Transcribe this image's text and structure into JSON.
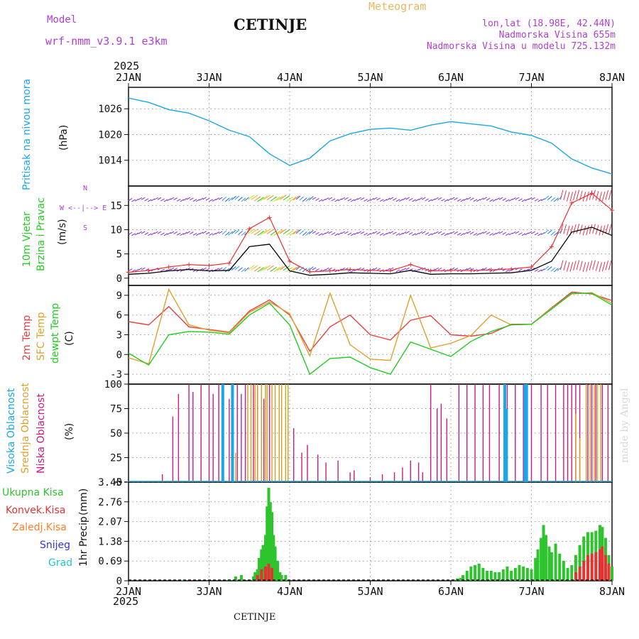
{
  "header": {
    "model_label": "Model",
    "model_name": "wrf-nmm_v3.9.1 e3km",
    "station": "CETINJE",
    "meteogram": "Meteogram",
    "lonlat": "lon,lat (18.98E, 42.44N)",
    "elevation": "Nadmorska Visina 655m",
    "model_elevation": "Nadmorska Visina u modelu 725.132m",
    "year": "2025",
    "watermark": "made by Angel",
    "footer_station": "CETINJE"
  },
  "colors": {
    "pressure": "#1aa7e6",
    "wind_black": "#000000",
    "wind_red": "#e63232",
    "temp2m": "#e84040",
    "sfc": "#e0a030",
    "dew": "#22cc22",
    "high_cloud": "#1aa7e6",
    "mid_cloud": "#d4a020",
    "low_cloud": "#cc1a80",
    "precip_total": "#2ec42e",
    "precip_conv": "#e63232",
    "precip_frz": "#ff7f2a",
    "precip_snow": "#3333dd",
    "precip_hail": "#22c7c7"
  },
  "chart_data": [
    {
      "id": "pressure",
      "type": "line",
      "ylabel": "Pritisak na nivou mora",
      "unit": "(hPa)",
      "ylim": [
        1008,
        1031
      ],
      "yticks": [
        1014,
        1020,
        1026
      ],
      "x": [
        0,
        0.25,
        0.5,
        0.75,
        1,
        1.25,
        1.5,
        1.75,
        2,
        2.25,
        2.5,
        2.75,
        3,
        3.25,
        3.5,
        3.75,
        4,
        4.25,
        4.5,
        4.75,
        5,
        5.25,
        5.5,
        5.75,
        6
      ],
      "values": [
        1028.5,
        1027.5,
        1025.8,
        1025,
        1023.2,
        1021,
        1019.5,
        1015.5,
        1012.8,
        1014.5,
        1018.5,
        1020.2,
        1021.2,
        1021.5,
        1021,
        1022.2,
        1023,
        1022.5,
        1022,
        1020.6,
        1019.8,
        1018,
        1014.3,
        1012.2,
        1010.8
      ],
      "grid": true
    },
    {
      "id": "wind",
      "type": "line",
      "ylabel": "10m Vjetar Brzina i Pravac",
      "unit": "(m/s)",
      "ylim": [
        -1.5,
        19
      ],
      "yticks": [
        0,
        5,
        10,
        15
      ],
      "x": [
        0,
        0.25,
        0.5,
        0.75,
        1,
        1.25,
        1.5,
        1.75,
        2,
        2.25,
        2.5,
        2.75,
        3,
        3.25,
        3.5,
        3.75,
        4,
        4.25,
        4.5,
        4.75,
        5,
        5.25,
        5.5,
        5.75,
        6
      ],
      "series": [
        {
          "name": "mean",
          "color": "#000000",
          "values": [
            0.8,
            1,
            1.5,
            1.8,
            1.5,
            1.6,
            6.5,
            7,
            1.5,
            0.6,
            0.8,
            1.1,
            1,
            0.9,
            1.6,
            0.8,
            0.9,
            0.9,
            1,
            1.1,
            1.6,
            3.5,
            9.5,
            10.5,
            8.8
          ]
        },
        {
          "name": "gust",
          "color": "#e63232",
          "values": [
            1.2,
            1.6,
            2.3,
            2.8,
            2.6,
            3.1,
            10.2,
            12.5,
            3.5,
            1.3,
            1.5,
            1.8,
            1.6,
            1.5,
            2.8,
            1.5,
            1.6,
            1.6,
            1.7,
            1.9,
            2.3,
            6.5,
            15.5,
            17.5,
            14
          ]
        }
      ],
      "barb_rows_ms": [
        1.5,
        9,
        16
      ],
      "direction_key": [
        "N",
        "E",
        "S",
        "W"
      ],
      "grid": true
    },
    {
      "id": "temperature",
      "type": "line",
      "ylabel": "2m Temp / SFC Temp / dewpt Temp",
      "unit": "(C)",
      "ylim": [
        -4.5,
        10.5
      ],
      "yticks": [
        -3,
        0,
        3,
        6,
        9
      ],
      "x": [
        0,
        0.25,
        0.5,
        0.75,
        1,
        1.25,
        1.5,
        1.75,
        2,
        2.25,
        2.5,
        2.75,
        3,
        3.25,
        3.5,
        3.75,
        4,
        4.25,
        4.5,
        4.75,
        5,
        5.25,
        5.5,
        5.75,
        6
      ],
      "series": [
        {
          "name": "2m Temp",
          "color": "#e84040",
          "values": [
            5,
            4.5,
            7.3,
            4.2,
            3.8,
            3.4,
            6.6,
            8.3,
            6,
            0.5,
            4.2,
            6,
            3,
            2.2,
            5.2,
            5.9,
            3,
            2.8,
            3.2,
            4.6,
            4.6,
            7.1,
            9.5,
            9.2,
            8.2
          ]
        },
        {
          "name": "SFC Temp",
          "color": "#e0a030",
          "values": [
            -0.5,
            -1.4,
            9.9,
            4.5,
            3.7,
            3.3,
            6.4,
            8,
            6.2,
            -0.2,
            9.3,
            1.5,
            -0.7,
            -0.9,
            9,
            1,
            1.7,
            2.9,
            6,
            4.5,
            4.6,
            7,
            9.2,
            9.4,
            7.8
          ]
        },
        {
          "name": "dewpt Temp",
          "color": "#22cc22",
          "values": [
            0.2,
            -1.6,
            3,
            3.5,
            3.4,
            3.1,
            6,
            7.8,
            4.5,
            -3,
            -0.6,
            -0.4,
            -2,
            -3,
            1.9,
            0.8,
            -0.3,
            2,
            3.5,
            4.5,
            4.6,
            6.9,
            9.3,
            9.3,
            7.5
          ]
        }
      ],
      "grid": true
    },
    {
      "id": "clouds",
      "type": "bar",
      "ylabel": "Visoka Oblacnost / Srednja Oblacnost / Niska Oblacnost",
      "unit": "(%)",
      "ylim": [
        0,
        100
      ],
      "yticks": [
        0,
        25,
        50,
        75,
        100
      ],
      "series": [
        {
          "name": "Niska Oblacnost",
          "color": "#cc1a80",
          "bars": [
            [
              0.42,
              8
            ],
            [
              0.55,
              67
            ],
            [
              0.62,
              90
            ],
            [
              0.75,
              100
            ],
            [
              0.8,
              92
            ],
            [
              0.9,
              100
            ],
            [
              1.0,
              100
            ],
            [
              1.05,
              90
            ],
            [
              1.12,
              100
            ],
            [
              1.25,
              85
            ],
            [
              1.3,
              65
            ],
            [
              1.35,
              100
            ],
            [
              1.4,
              90
            ],
            [
              1.45,
              100
            ],
            [
              1.55,
              100
            ],
            [
              1.6,
              97
            ],
            [
              1.68,
              85
            ],
            [
              1.75,
              100
            ],
            [
              2.05,
              55
            ],
            [
              2.15,
              30
            ],
            [
              2.22,
              38
            ],
            [
              2.35,
              28
            ],
            [
              2.45,
              20
            ],
            [
              2.6,
              22
            ],
            [
              2.75,
              10
            ],
            [
              2.8,
              12
            ],
            [
              3.0,
              5
            ],
            [
              3.15,
              8
            ],
            [
              3.3,
              10
            ],
            [
              3.4,
              15
            ],
            [
              3.5,
              22
            ],
            [
              3.6,
              20
            ],
            [
              3.65,
              10
            ],
            [
              3.75,
              100
            ],
            [
              3.83,
              75
            ],
            [
              3.88,
              80
            ],
            [
              3.95,
              65
            ],
            [
              4.1,
              100
            ],
            [
              4.2,
              100
            ],
            [
              4.3,
              100
            ],
            [
              4.4,
              100
            ],
            [
              4.48,
              100
            ],
            [
              4.6,
              100
            ],
            [
              4.7,
              100
            ],
            [
              4.8,
              100
            ],
            [
              4.9,
              100
            ],
            [
              5.0,
              100
            ],
            [
              5.12,
              100
            ],
            [
              5.2,
              100
            ],
            [
              5.3,
              100
            ],
            [
              5.4,
              100
            ],
            [
              5.45,
              100
            ],
            [
              5.5,
              100
            ],
            [
              5.55,
              100
            ],
            [
              5.6,
              100
            ],
            [
              5.7,
              100
            ],
            [
              5.75,
              100
            ],
            [
              5.8,
              100
            ],
            [
              5.88,
              100
            ],
            [
              5.95,
              100
            ]
          ]
        },
        {
          "name": "Srednja Oblacnost",
          "color": "#d4a020",
          "bars": [
            [
              1.3,
              35
            ],
            [
              1.33,
              30
            ],
            [
              1.48,
              100
            ],
            [
              1.52,
              100
            ],
            [
              1.57,
              100
            ],
            [
              1.6,
              100
            ],
            [
              1.65,
              100
            ],
            [
              1.7,
              100
            ],
            [
              1.72,
              100
            ],
            [
              1.78,
              100
            ],
            [
              1.82,
              100
            ],
            [
              1.87,
              100
            ],
            [
              1.9,
              100
            ],
            [
              1.95,
              100
            ],
            [
              1.98,
              100
            ],
            [
              5.55,
              70
            ],
            [
              5.6,
              45
            ],
            [
              5.68,
              100
            ],
            [
              5.73,
              100
            ],
            [
              5.78,
              100
            ],
            [
              5.82,
              100
            ],
            [
              5.86,
              100
            ]
          ]
        },
        {
          "name": "Visoka Oblacnost",
          "color": "#1aa7e6",
          "bars": [
            [
              1.17,
              100
            ],
            [
              1.29,
              100
            ],
            [
              4.67,
              100
            ],
            [
              4.69,
              75
            ],
            [
              4.92,
              100
            ],
            [
              4.94,
              100
            ]
          ]
        }
      ],
      "grid": true
    },
    {
      "id": "precip",
      "type": "bar",
      "ylabel": "1hr Precip",
      "unit": "(mm)",
      "ylim": [
        0,
        3.45
      ],
      "yticks": [
        0,
        0.69,
        1.38,
        2.07,
        2.76,
        3.45
      ],
      "legend": [
        "Ukupna Kisa",
        "Konvek.Kisa",
        "Zaledj.Kisa",
        "Snijeg",
        "Grad"
      ],
      "series": [
        {
          "name": "Ukupna Kisa",
          "color": "#2ec42e",
          "bars": [
            [
              0.67,
              0.03
            ],
            [
              1.25,
              0.05
            ],
            [
              1.33,
              0.15
            ],
            [
              1.4,
              0.2
            ],
            [
              1.55,
              0.15
            ],
            [
              1.57,
              0.3
            ],
            [
              1.6,
              0.4
            ],
            [
              1.62,
              0.8
            ],
            [
              1.65,
              1.1
            ],
            [
              1.67,
              1.25
            ],
            [
              1.7,
              1.6
            ],
            [
              1.72,
              2.6
            ],
            [
              1.74,
              3.25
            ],
            [
              1.76,
              2.75
            ],
            [
              1.78,
              2.4
            ],
            [
              1.8,
              1.6
            ],
            [
              1.82,
              1.2
            ],
            [
              1.85,
              0.7
            ],
            [
              1.88,
              0.3
            ],
            [
              1.9,
              0.2
            ],
            [
              1.95,
              0.2
            ],
            [
              4.03,
              0.05
            ],
            [
              4.08,
              0.08
            ],
            [
              4.12,
              0.1
            ],
            [
              4.15,
              0.2
            ],
            [
              4.2,
              0.35
            ],
            [
              4.25,
              0.5
            ],
            [
              4.3,
              0.55
            ],
            [
              4.35,
              0.6
            ],
            [
              4.4,
              0.45
            ],
            [
              4.45,
              0.35
            ],
            [
              4.5,
              0.35
            ],
            [
              4.55,
              0.3
            ],
            [
              4.6,
              0.3
            ],
            [
              4.65,
              0.4
            ],
            [
              4.7,
              0.5
            ],
            [
              4.75,
              0.35
            ],
            [
              4.8,
              0.45
            ],
            [
              4.85,
              0.55
            ],
            [
              4.9,
              0.5
            ],
            [
              4.95,
              0.45
            ],
            [
              5.0,
              0.4
            ],
            [
              5.05,
              0.8
            ],
            [
              5.08,
              1.1
            ],
            [
              5.12,
              1.5
            ],
            [
              5.15,
              1.95
            ],
            [
              5.18,
              1.6
            ],
            [
              5.22,
              1.2
            ],
            [
              5.25,
              1.0
            ],
            [
              5.3,
              1.3
            ],
            [
              5.35,
              0.95
            ],
            [
              5.4,
              0.7
            ],
            [
              5.45,
              0.45
            ],
            [
              5.5,
              0.55
            ],
            [
              5.55,
              0.9
            ],
            [
              5.6,
              1.25
            ],
            [
              5.65,
              1.55
            ],
            [
              5.7,
              1.7
            ],
            [
              5.75,
              1.7
            ],
            [
              5.8,
              1.75
            ],
            [
              5.85,
              1.95
            ],
            [
              5.88,
              1.88
            ],
            [
              5.92,
              1.5
            ],
            [
              5.96,
              0.9
            ],
            [
              6.0,
              0.5
            ]
          ]
        },
        {
          "name": "Konvek.Kisa",
          "color": "#e63232",
          "bars": [
            [
              1.6,
              0.2
            ],
            [
              1.65,
              0.4
            ],
            [
              1.7,
              0.5
            ],
            [
              1.74,
              0.6
            ],
            [
              1.78,
              0.45
            ],
            [
              5.55,
              0.3
            ],
            [
              5.6,
              0.5
            ],
            [
              5.65,
              0.7
            ],
            [
              5.7,
              0.9
            ],
            [
              5.75,
              0.95
            ],
            [
              5.8,
              1.0
            ],
            [
              5.85,
              1.1
            ],
            [
              5.88,
              1.2
            ],
            [
              5.92,
              0.9
            ],
            [
              5.96,
              0.6
            ]
          ]
        }
      ],
      "grid": true
    }
  ],
  "xaxis": {
    "top_labels": [
      "2JAN",
      "3JAN",
      "4JAN",
      "5JAN",
      "6JAN",
      "7JAN",
      "8JAN"
    ],
    "bottom_labels": [
      "2JAN",
      "3JAN",
      "4JAN",
      "5JAN",
      "6JAN",
      "7JAN",
      "8JAN"
    ]
  },
  "yticks_text": {
    "pressure": [
      "1026",
      "1020",
      "1014"
    ],
    "wind": [
      "15",
      "10",
      "5",
      "0"
    ],
    "temp": [
      "9",
      "6",
      "3",
      "0",
      "-3"
    ],
    "cloud": [
      "100",
      "75",
      "50",
      "25",
      "0"
    ],
    "precip": [
      "3.45",
      "2.76",
      "2.07",
      "1.38",
      "0.69",
      "0"
    ]
  },
  "panel_labels": {
    "pressure_title": "Pritisak na nivou mora",
    "pressure_unit": "(hPa)",
    "wind_title1": "10m Vjetar",
    "wind_title2": "Brzina i Pravac",
    "wind_unit": "(m/s)",
    "wind_key_n": "N",
    "wind_key_row": "W <--|--> E",
    "wind_key_s": "S",
    "temp_2m": "2m Temp",
    "temp_sfc": "SFC Temp",
    "temp_dew": "dewpt Temp",
    "temp_unit": "(C)",
    "cloud_high": "Visoka Oblacnost",
    "cloud_mid": "Srednja Oblacnost",
    "cloud_low": "Niska Oblacnost",
    "cloud_unit": "(%)",
    "precip_title": "1hr Precip",
    "precip_unit": "(mm)",
    "legend_total": "Ukupna Kisa",
    "legend_conv": "Konvek.Kisa",
    "legend_frz": "Zaledj.Kisa",
    "legend_snow": "Snijeg",
    "legend_hail": "Grad"
  }
}
